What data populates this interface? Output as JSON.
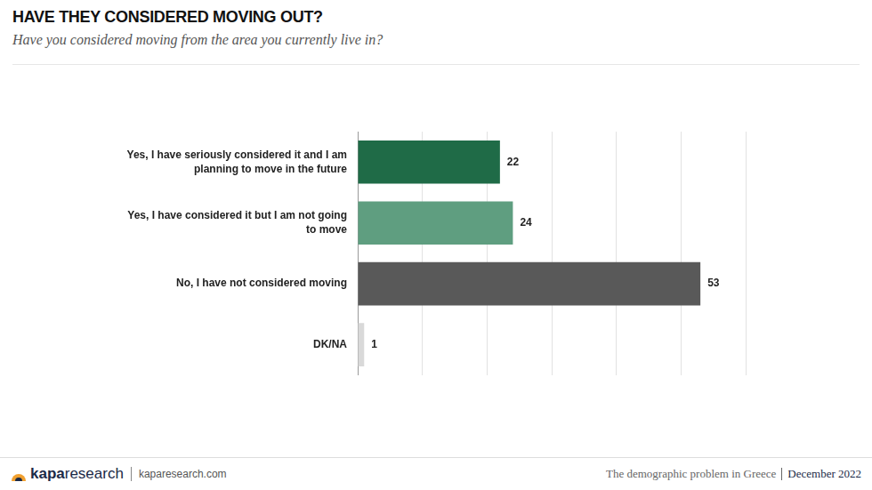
{
  "chart_data": {
    "type": "bar",
    "orientation": "horizontal",
    "title": "HAVE THEY CONSIDERED MOVING OUT?",
    "subtitle": "Have you considered moving from the area you currently live in?",
    "categories": [
      [
        "Yes, I have seriously considered it and I am",
        "planning to move in the future"
      ],
      [
        "Yes, I have considered it but I am not going",
        "to move"
      ],
      "No, I have not considered moving",
      "DK/NA"
    ],
    "values": [
      22,
      24,
      53,
      1
    ],
    "colors": [
      "#1f6b47",
      "#5f9e80",
      "#595959",
      "#d9d9d9"
    ],
    "xlim": [
      0,
      60
    ],
    "xticks": [
      0,
      10,
      20,
      30,
      40,
      50,
      60
    ],
    "grid": true,
    "data_labels": true,
    "tick_labels": "y"
  },
  "footer": {
    "logo": [
      "kapa",
      "research"
    ],
    "website": "kaparesearch.com",
    "source": "The demographic problem in Greece",
    "date": "December 2022"
  }
}
